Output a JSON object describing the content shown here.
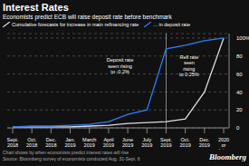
{
  "chart_data": {
    "type": "line",
    "title": "Interest Rates",
    "subtitle": "Economists predict ECB will raise deposit rate before benchmark",
    "categories": [
      "Sept.\n2018",
      "Oct.\n2018",
      "Dec.\n2018",
      "Jan.\n2019",
      "March\n2019",
      "April\n2019",
      "June\n2019",
      "July\n2019",
      "Sept.\n2019",
      "Oct.\n2019",
      "Dec.\n2019",
      "2020\nor\nlater"
    ],
    "series": [
      {
        "name": "Cumulative forecasts for increase in main refinancing rate",
        "color": "#dddddd",
        "values": [
          1,
          1,
          1,
          1,
          2,
          3,
          5,
          6,
          7,
          10,
          40,
          100
        ]
      },
      {
        "name": "... in deposit rate",
        "color": "#2a7fff",
        "values": [
          1,
          2,
          2,
          3,
          4,
          7,
          15,
          20,
          88,
          92,
          97,
          100
        ]
      }
    ],
    "ylim": [
      0,
      105
    ],
    "yticks": [
      0,
      20,
      40,
      60,
      80,
      {
        "value": 100,
        "label": "100%"
      }
    ],
    "grid": true,
    "legend": "top",
    "vline": "Sept.\n2019",
    "annotations": [
      "Deposit rate\nseen rising\nto -0.2%",
      "Refi rate\nseen\nrising\nto 0.25%"
    ],
    "notes": [
      "Chart shows by when economists predict interest rates will rise",
      "Source: Bloomberg survey of economists conducted Aug. 31-Sept. 6"
    ],
    "credit": "Bloomberg"
  }
}
